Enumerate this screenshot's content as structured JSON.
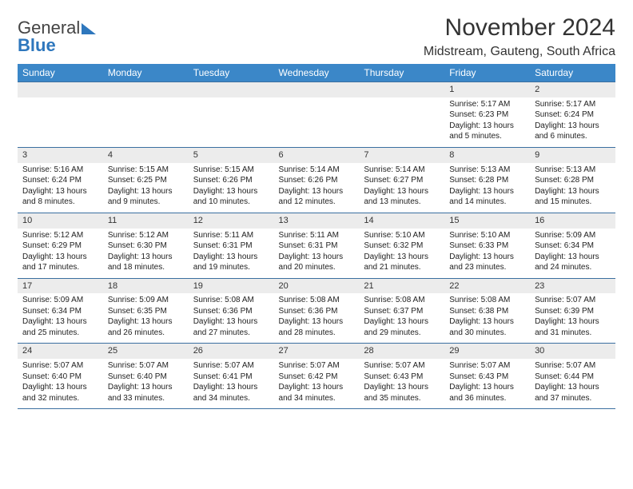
{
  "brand": {
    "line1": "General",
    "line2": "Blue"
  },
  "title": "November 2024",
  "location": "Midstream, Gauteng, South Africa",
  "colors": {
    "header": "#3b87c8",
    "rule": "#3b6fa0",
    "daybg": "#ececec",
    "brandblue": "#2e77bd"
  },
  "fonts": {
    "title_size": 30,
    "location_size": 16,
    "dow_size": 12,
    "cell_size": 10
  },
  "dow": [
    "Sunday",
    "Monday",
    "Tuesday",
    "Wednesday",
    "Thursday",
    "Friday",
    "Saturday"
  ],
  "weeks": [
    [
      null,
      null,
      null,
      null,
      null,
      {
        "n": "1",
        "sr": "Sunrise: 5:17 AM",
        "ss": "Sunset: 6:23 PM",
        "dl": "Daylight: 13 hours and 5 minutes."
      },
      {
        "n": "2",
        "sr": "Sunrise: 5:17 AM",
        "ss": "Sunset: 6:24 PM",
        "dl": "Daylight: 13 hours and 6 minutes."
      }
    ],
    [
      {
        "n": "3",
        "sr": "Sunrise: 5:16 AM",
        "ss": "Sunset: 6:24 PM",
        "dl": "Daylight: 13 hours and 8 minutes."
      },
      {
        "n": "4",
        "sr": "Sunrise: 5:15 AM",
        "ss": "Sunset: 6:25 PM",
        "dl": "Daylight: 13 hours and 9 minutes."
      },
      {
        "n": "5",
        "sr": "Sunrise: 5:15 AM",
        "ss": "Sunset: 6:26 PM",
        "dl": "Daylight: 13 hours and 10 minutes."
      },
      {
        "n": "6",
        "sr": "Sunrise: 5:14 AM",
        "ss": "Sunset: 6:26 PM",
        "dl": "Daylight: 13 hours and 12 minutes."
      },
      {
        "n": "7",
        "sr": "Sunrise: 5:14 AM",
        "ss": "Sunset: 6:27 PM",
        "dl": "Daylight: 13 hours and 13 minutes."
      },
      {
        "n": "8",
        "sr": "Sunrise: 5:13 AM",
        "ss": "Sunset: 6:28 PM",
        "dl": "Daylight: 13 hours and 14 minutes."
      },
      {
        "n": "9",
        "sr": "Sunrise: 5:13 AM",
        "ss": "Sunset: 6:28 PM",
        "dl": "Daylight: 13 hours and 15 minutes."
      }
    ],
    [
      {
        "n": "10",
        "sr": "Sunrise: 5:12 AM",
        "ss": "Sunset: 6:29 PM",
        "dl": "Daylight: 13 hours and 17 minutes."
      },
      {
        "n": "11",
        "sr": "Sunrise: 5:12 AM",
        "ss": "Sunset: 6:30 PM",
        "dl": "Daylight: 13 hours and 18 minutes."
      },
      {
        "n": "12",
        "sr": "Sunrise: 5:11 AM",
        "ss": "Sunset: 6:31 PM",
        "dl": "Daylight: 13 hours and 19 minutes."
      },
      {
        "n": "13",
        "sr": "Sunrise: 5:11 AM",
        "ss": "Sunset: 6:31 PM",
        "dl": "Daylight: 13 hours and 20 minutes."
      },
      {
        "n": "14",
        "sr": "Sunrise: 5:10 AM",
        "ss": "Sunset: 6:32 PM",
        "dl": "Daylight: 13 hours and 21 minutes."
      },
      {
        "n": "15",
        "sr": "Sunrise: 5:10 AM",
        "ss": "Sunset: 6:33 PM",
        "dl": "Daylight: 13 hours and 23 minutes."
      },
      {
        "n": "16",
        "sr": "Sunrise: 5:09 AM",
        "ss": "Sunset: 6:34 PM",
        "dl": "Daylight: 13 hours and 24 minutes."
      }
    ],
    [
      {
        "n": "17",
        "sr": "Sunrise: 5:09 AM",
        "ss": "Sunset: 6:34 PM",
        "dl": "Daylight: 13 hours and 25 minutes."
      },
      {
        "n": "18",
        "sr": "Sunrise: 5:09 AM",
        "ss": "Sunset: 6:35 PM",
        "dl": "Daylight: 13 hours and 26 minutes."
      },
      {
        "n": "19",
        "sr": "Sunrise: 5:08 AM",
        "ss": "Sunset: 6:36 PM",
        "dl": "Daylight: 13 hours and 27 minutes."
      },
      {
        "n": "20",
        "sr": "Sunrise: 5:08 AM",
        "ss": "Sunset: 6:36 PM",
        "dl": "Daylight: 13 hours and 28 minutes."
      },
      {
        "n": "21",
        "sr": "Sunrise: 5:08 AM",
        "ss": "Sunset: 6:37 PM",
        "dl": "Daylight: 13 hours and 29 minutes."
      },
      {
        "n": "22",
        "sr": "Sunrise: 5:08 AM",
        "ss": "Sunset: 6:38 PM",
        "dl": "Daylight: 13 hours and 30 minutes."
      },
      {
        "n": "23",
        "sr": "Sunrise: 5:07 AM",
        "ss": "Sunset: 6:39 PM",
        "dl": "Daylight: 13 hours and 31 minutes."
      }
    ],
    [
      {
        "n": "24",
        "sr": "Sunrise: 5:07 AM",
        "ss": "Sunset: 6:40 PM",
        "dl": "Daylight: 13 hours and 32 minutes."
      },
      {
        "n": "25",
        "sr": "Sunrise: 5:07 AM",
        "ss": "Sunset: 6:40 PM",
        "dl": "Daylight: 13 hours and 33 minutes."
      },
      {
        "n": "26",
        "sr": "Sunrise: 5:07 AM",
        "ss": "Sunset: 6:41 PM",
        "dl": "Daylight: 13 hours and 34 minutes."
      },
      {
        "n": "27",
        "sr": "Sunrise: 5:07 AM",
        "ss": "Sunset: 6:42 PM",
        "dl": "Daylight: 13 hours and 34 minutes."
      },
      {
        "n": "28",
        "sr": "Sunrise: 5:07 AM",
        "ss": "Sunset: 6:43 PM",
        "dl": "Daylight: 13 hours and 35 minutes."
      },
      {
        "n": "29",
        "sr": "Sunrise: 5:07 AM",
        "ss": "Sunset: 6:43 PM",
        "dl": "Daylight: 13 hours and 36 minutes."
      },
      {
        "n": "30",
        "sr": "Sunrise: 5:07 AM",
        "ss": "Sunset: 6:44 PM",
        "dl": "Daylight: 13 hours and 37 minutes."
      }
    ]
  ]
}
